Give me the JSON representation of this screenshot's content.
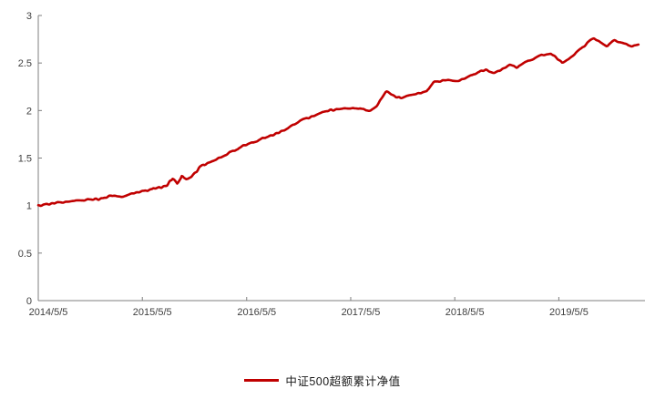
{
  "page": {
    "background": "#ffffff"
  },
  "legend": {
    "label": "中证500超额累计净值"
  },
  "chart_data": {
    "type": "line",
    "title": "",
    "xlabel": "",
    "ylabel": "",
    "ylim": [
      0,
      3
    ],
    "grid": false,
    "legend_position": "bottom-center",
    "axis_color": "#7f7f7f",
    "label_color": "#404040",
    "y_ticks": [
      0,
      0.5,
      1,
      1.5,
      2,
      2.5,
      3
    ],
    "x_ticks": [
      "2014/5/5",
      "2015/5/5",
      "2016/5/5",
      "2017/5/5",
      "2018/5/5",
      "2019/5/5"
    ],
    "series": [
      {
        "name": "中证500超额累计净值",
        "color": "#C00000",
        "points": [
          [
            "2014/5/5",
            1.0
          ],
          [
            "2014/6/20",
            1.02
          ],
          [
            "2014/8/15",
            1.04
          ],
          [
            "2014/10/10",
            1.05
          ],
          [
            "2014/12/5",
            1.07
          ],
          [
            "2015/1/15",
            1.1
          ],
          [
            "2015/2/20",
            1.09
          ],
          [
            "2015/4/5",
            1.13
          ],
          [
            "2015/5/20",
            1.16
          ],
          [
            "2015/7/10",
            1.19
          ],
          [
            "2015/8/3",
            1.23
          ],
          [
            "2015/8/20",
            1.3
          ],
          [
            "2015/9/5",
            1.24
          ],
          [
            "2015/9/21",
            1.33
          ],
          [
            "2015/10/5",
            1.27
          ],
          [
            "2015/11/5",
            1.36
          ],
          [
            "2016/1/4",
            1.47
          ],
          [
            "2016/2/21",
            1.54
          ],
          [
            "2016/4/5",
            1.6
          ],
          [
            "2016/6/7",
            1.68
          ],
          [
            "2016/7/31",
            1.74
          ],
          [
            "2016/9/25",
            1.81
          ],
          [
            "2016/11/11",
            1.9
          ],
          [
            "2016/12/29",
            1.95
          ],
          [
            "2017/2/22",
            2.0
          ],
          [
            "2017/4/19",
            2.03
          ],
          [
            "2017/6/7",
            2.02
          ],
          [
            "2017/7/14",
            2.0
          ],
          [
            "2017/8/5",
            2.04
          ],
          [
            "2017/9/6",
            2.21
          ],
          [
            "2017/10/1",
            2.16
          ],
          [
            "2017/10/27",
            2.13
          ],
          [
            "2017/12/14",
            2.17
          ],
          [
            "2018/1/26",
            2.2
          ],
          [
            "2018/2/21",
            2.3
          ],
          [
            "2018/4/13",
            2.32
          ],
          [
            "2018/5/12",
            2.3
          ],
          [
            "2018/6/24",
            2.36
          ],
          [
            "2018/8/21",
            2.43
          ],
          [
            "2018/9/20",
            2.39
          ],
          [
            "2018/11/14",
            2.48
          ],
          [
            "2018/12/9",
            2.45
          ],
          [
            "2019/1/18",
            2.53
          ],
          [
            "2019/3/6",
            2.58
          ],
          [
            "2019/4/7",
            2.6
          ],
          [
            "2019/4/29",
            2.55
          ],
          [
            "2019/5/18",
            2.5
          ],
          [
            "2019/6/24",
            2.58
          ],
          [
            "2019/8/14",
            2.71
          ],
          [
            "2019/9/4",
            2.76
          ],
          [
            "2019/9/29",
            2.72
          ],
          [
            "2019/10/21",
            2.67
          ],
          [
            "2019/11/16",
            2.74
          ],
          [
            "2019/12/19",
            2.7
          ],
          [
            "2020/1/17",
            2.68
          ],
          [
            "2020/2/11",
            2.7
          ]
        ]
      }
    ]
  }
}
